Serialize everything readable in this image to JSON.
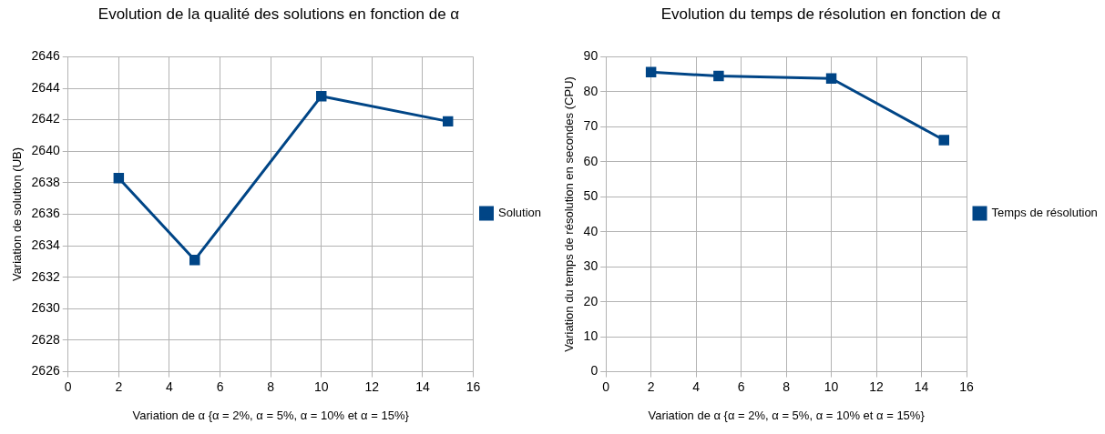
{
  "chart_data": [
    {
      "type": "line",
      "title": "Evolution de la qualité des solutions en fonction de α",
      "xlabel": "Variation de α {α = 2%, α = 5%, α = 10% et α = 15%}",
      "ylabel": "Variation de solution (UB)",
      "x": [
        2,
        5,
        10,
        15
      ],
      "series": [
        {
          "name": "Solution",
          "color": "#004586",
          "values": [
            2638.3,
            2633.1,
            2643.5,
            2641.9
          ]
        }
      ],
      "xlim": [
        0,
        16
      ],
      "xticks": [
        0,
        2,
        4,
        6,
        8,
        10,
        12,
        14,
        16
      ],
      "ylim": [
        2626,
        2646
      ],
      "yticks": [
        2626,
        2628,
        2630,
        2632,
        2634,
        2636,
        2638,
        2640,
        2642,
        2644,
        2646
      ],
      "grid": true,
      "legend": "right",
      "marker": "square",
      "line_style": "solid"
    },
    {
      "type": "line",
      "title": "Evolution du temps de résolution en fonction de α",
      "xlabel": "Variation de α {α = 2%, α = 5%, α = 10% et α = 15%}",
      "ylabel": "Variation du temps de résolution en secondes (CPU)",
      "x": [
        2,
        5,
        10,
        15
      ],
      "series": [
        {
          "name": "Temps de résolution",
          "color": "#004586",
          "values": [
            85.6,
            84.5,
            83.8,
            66.2
          ]
        }
      ],
      "xlim": [
        0,
        16
      ],
      "xticks": [
        0,
        2,
        4,
        6,
        8,
        10,
        12,
        14,
        16
      ],
      "ylim": [
        0,
        90
      ],
      "yticks": [
        0,
        10,
        20,
        30,
        40,
        50,
        60,
        70,
        80,
        90
      ],
      "grid": true,
      "legend": "right",
      "marker": "square",
      "line_style": "solid"
    }
  ]
}
